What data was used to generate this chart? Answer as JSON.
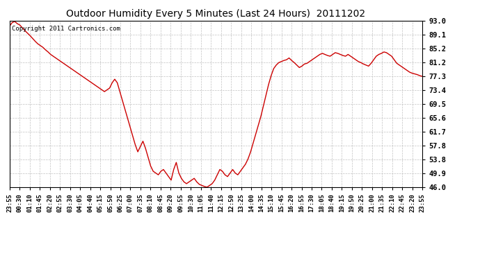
{
  "title": "Outdoor Humidity Every 5 Minutes (Last 24 Hours)  20111202",
  "copyright_text": "Copyright 2011 Cartronics.com",
  "line_color": "#cc0000",
  "background_color": "#ffffff",
  "plot_background": "#ffffff",
  "grid_color": "#bbbbbb",
  "ytick_labels": [
    93.0,
    89.1,
    85.2,
    81.2,
    77.3,
    73.4,
    69.5,
    65.6,
    61.7,
    57.8,
    53.8,
    49.9,
    46.0
  ],
  "ymin": 46.0,
  "ymax": 93.0,
  "xtick_labels": [
    "23:55",
    "00:30",
    "01:10",
    "01:45",
    "02:20",
    "02:55",
    "03:30",
    "04:05",
    "04:40",
    "05:15",
    "05:50",
    "06:25",
    "07:00",
    "07:35",
    "08:10",
    "08:45",
    "09:20",
    "09:55",
    "10:30",
    "11:05",
    "11:40",
    "12:15",
    "12:50",
    "13:25",
    "14:00",
    "14:35",
    "15:10",
    "15:45",
    "16:20",
    "16:55",
    "17:30",
    "18:05",
    "18:40",
    "19:15",
    "19:50",
    "20:25",
    "21:00",
    "21:35",
    "22:10",
    "22:45",
    "23:20",
    "23:55"
  ],
  "humidity_data": [
    91.5,
    92.5,
    92.8,
    92.2,
    91.8,
    91.0,
    90.2,
    89.5,
    88.8,
    88.0,
    87.2,
    86.5,
    86.0,
    85.5,
    84.8,
    84.2,
    83.5,
    83.0,
    82.5,
    82.0,
    81.5,
    81.0,
    80.5,
    80.0,
    79.5,
    79.0,
    78.5,
    78.0,
    77.5,
    77.0,
    76.5,
    76.0,
    75.5,
    75.0,
    74.5,
    74.0,
    73.5,
    73.0,
    73.5,
    74.0,
    75.5,
    76.5,
    75.5,
    73.0,
    70.5,
    68.0,
    65.5,
    63.0,
    60.5,
    58.0,
    56.0,
    57.5,
    59.0,
    57.0,
    54.5,
    52.0,
    50.5,
    50.0,
    49.5,
    50.5,
    51.0,
    50.0,
    49.0,
    48.0,
    51.0,
    53.0,
    50.0,
    48.5,
    47.5,
    47.0,
    47.5,
    48.0,
    48.5,
    47.5,
    46.8,
    46.5,
    46.2,
    46.0,
    46.5,
    47.0,
    48.0,
    49.5,
    51.0,
    50.5,
    49.5,
    49.0,
    50.0,
    51.0,
    50.0,
    49.5,
    50.5,
    51.5,
    52.5,
    54.0,
    56.0,
    58.5,
    61.0,
    63.5,
    66.0,
    69.0,
    72.0,
    75.0,
    77.5,
    79.5,
    80.5,
    81.2,
    81.5,
    81.8,
    82.0,
    82.5,
    81.8,
    81.2,
    80.5,
    79.8,
    80.2,
    80.8,
    81.0,
    81.5,
    82.0,
    82.5,
    83.0,
    83.5,
    83.8,
    83.5,
    83.2,
    83.0,
    83.5,
    84.0,
    83.8,
    83.5,
    83.2,
    83.0,
    83.5,
    83.0,
    82.5,
    82.0,
    81.5,
    81.2,
    80.8,
    80.5,
    80.2,
    81.0,
    82.0,
    83.0,
    83.5,
    83.8,
    84.2,
    84.0,
    83.5,
    83.0,
    82.0,
    81.0,
    80.5,
    80.0,
    79.5,
    79.0,
    78.5,
    78.2,
    78.0,
    77.8,
    77.5,
    77.3
  ]
}
